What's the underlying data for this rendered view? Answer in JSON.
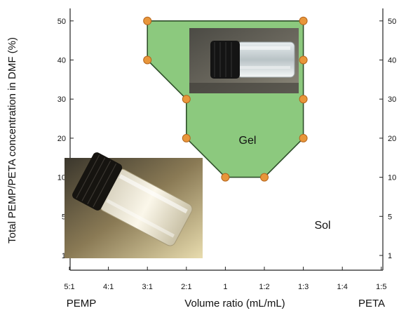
{
  "chart_data": {
    "type": "phase-diagram",
    "xlabel": "Volume ratio (mL/mL)",
    "ylabel": "Total PEMP/PETA concentration in DMF (%)",
    "x_end_labels": {
      "left": "PEMP",
      "right": "PETA"
    },
    "categories": [
      "5:1",
      "4:1",
      "3:1",
      "2:1",
      "1",
      "1:2",
      "1:3",
      "1:4",
      "1:5"
    ],
    "y_ticks": [
      1,
      5,
      10,
      20,
      30,
      40,
      50
    ],
    "y_scale": "categorical",
    "regions": [
      {
        "name": "Gel",
        "fill": "#8cc97e",
        "edge": "#2f4f2a",
        "boundary": [
          {
            "x": "3:1",
            "y": 50
          },
          {
            "x": "1:3",
            "y": 50
          },
          {
            "x": "1:3",
            "y": 40
          },
          {
            "x": "1:3",
            "y": 30
          },
          {
            "x": "1:3",
            "y": 20
          },
          {
            "x": "1:2",
            "y": 10
          },
          {
            "x": "1",
            "y": 10
          },
          {
            "x": "2:1",
            "y": 20
          },
          {
            "x": "2:1",
            "y": 30
          },
          {
            "x": "3:1",
            "y": 40
          }
        ]
      },
      {
        "name": "Sol"
      }
    ],
    "points_color": "#e8963a",
    "points": [
      {
        "x": "3:1",
        "y": 50
      },
      {
        "x": "1:3",
        "y": 50
      },
      {
        "x": "3:1",
        "y": 40
      },
      {
        "x": "1:3",
        "y": 40
      },
      {
        "x": "2:1",
        "y": 30
      },
      {
        "x": "1:3",
        "y": 30
      },
      {
        "x": "2:1",
        "y": 20
      },
      {
        "x": "1:3",
        "y": 20
      },
      {
        "x": "1",
        "y": 10
      },
      {
        "x": "1:2",
        "y": 10
      }
    ],
    "photos": [
      {
        "name": "gel-vial-photo",
        "description": "upright vial of clear gel"
      },
      {
        "name": "sol-vial-photo",
        "description": "tilted vial of clear liquid"
      }
    ],
    "grid": false,
    "legend": "none"
  }
}
